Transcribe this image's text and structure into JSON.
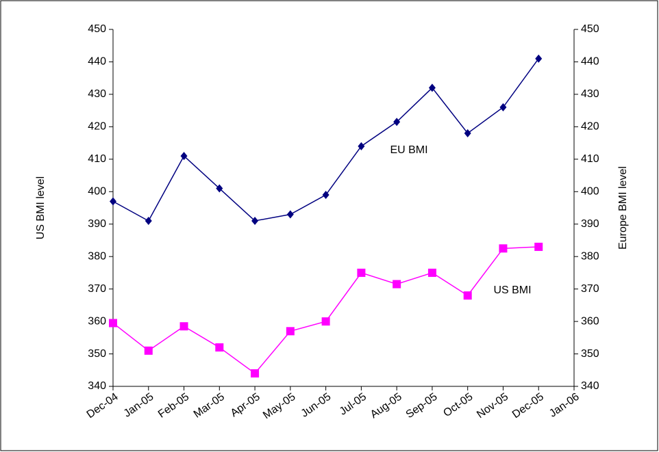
{
  "chart_data": {
    "type": "line",
    "y_label": "US BMI level",
    "y2_label": "Europe BMI level",
    "categories": [
      "Dec-04",
      "Jan-05",
      "Feb-05",
      "Mar-05",
      "Apr-05",
      "May-05",
      "Jun-05",
      "Jul-05",
      "Aug-05",
      "Sep-05",
      "Oct-05",
      "Nov-05",
      "Dec-05",
      "Jan-06"
    ],
    "series": [
      {
        "name": "EU BMI",
        "color": "#000080",
        "marker": "diamond",
        "axis": "y2",
        "values": [
          397,
          391,
          411,
          401,
          391,
          393,
          399,
          414,
          421.5,
          432,
          418,
          426,
          441,
          null
        ]
      },
      {
        "name": "US BMI",
        "color": "#ff00ff",
        "marker": "square",
        "values": [
          359.5,
          351,
          358.5,
          352,
          344,
          357,
          360,
          375,
          371.5,
          375,
          368,
          382.5,
          383,
          null
        ]
      }
    ],
    "ylim": [
      340,
      450
    ],
    "yticks": [
      340,
      350,
      360,
      370,
      380,
      390,
      400,
      410,
      420,
      430,
      440,
      450
    ],
    "y2lim": [
      340,
      450
    ],
    "y2ticks": [
      340,
      350,
      360,
      370,
      380,
      390,
      400,
      410,
      420,
      430,
      440,
      450
    ],
    "grid": false
  }
}
